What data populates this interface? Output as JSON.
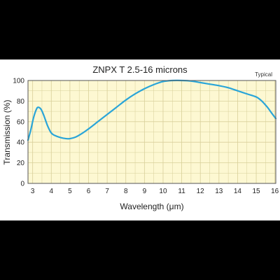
{
  "chart_data": {
    "type": "line",
    "title": "ZNPX T 2.5-16 microns",
    "annotation": "Typical",
    "xlabel": "Wavelength (μm)",
    "ylabel": "Transmission (%)",
    "xlim": [
      2.75,
      16.05
    ],
    "ylim": [
      0,
      100
    ],
    "xticks": [
      3,
      4,
      5,
      6,
      7,
      8,
      9,
      10,
      11,
      12,
      13,
      14,
      15,
      16
    ],
    "yticks": [
      0,
      20,
      40,
      60,
      80,
      100
    ],
    "grid": true,
    "colors": {
      "line": "#2aa5d8",
      "plot_bg": "#fdf8d2",
      "grid": "#d8cf9a",
      "frame": "#555555"
    },
    "series": [
      {
        "x": [
          2.75,
          2.9,
          3.05,
          3.2,
          3.3,
          3.45,
          3.6,
          3.8,
          4.0,
          4.2,
          4.5,
          4.8,
          5.0,
          5.3,
          5.6,
          6.0,
          6.5,
          7.0,
          7.5,
          8.0,
          8.5,
          9.0,
          9.5,
          10.0,
          10.5,
          11.0,
          11.5,
          12.0,
          12.5,
          13.0,
          13.5,
          14.0,
          14.5,
          15.0,
          15.3,
          15.6,
          15.8,
          16.05
        ],
        "y": [
          42,
          52,
          64,
          72,
          74,
          72,
          66,
          56,
          49,
          46.5,
          44.5,
          43.5,
          43.5,
          45,
          48,
          53,
          60,
          67,
          74,
          81,
          87,
          92,
          96,
          99,
          100,
          100,
          99.5,
          98,
          96.5,
          95,
          93,
          90,
          87,
          84,
          80,
          74,
          69,
          63
        ]
      }
    ]
  }
}
